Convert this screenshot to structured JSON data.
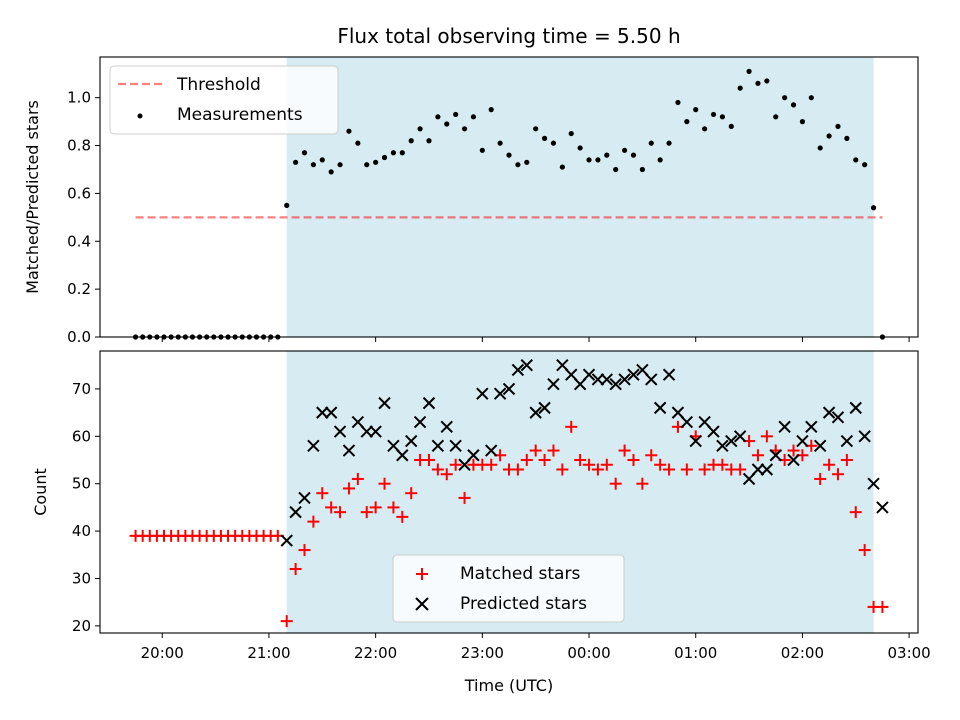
{
  "figure": {
    "title": "Flux total observing time = 5.50 h"
  },
  "colors": {
    "shade": "#add8e6",
    "threshold": "#ff0000",
    "matched": "#ff0000",
    "predicted": "#000000",
    "measurement": "#000000"
  },
  "chart_data": [
    {
      "type": "scatter",
      "panel": "top",
      "ylabel": "Matched/Predicted stars",
      "xlabel": "",
      "xlim": [
        "19:25",
        "03:05"
      ],
      "ylim": [
        0,
        1.17
      ],
      "x_axis": "time (UTC), hh:mm",
      "yticks": [
        "0.0",
        "0.2",
        "0.4",
        "0.6",
        "0.8",
        "1.0"
      ],
      "shaded_interval": [
        "21:10",
        "02:40"
      ],
      "legend": {
        "placement": "top-left",
        "entries": [
          "Threshold",
          "Measurements"
        ]
      },
      "threshold": {
        "name": "Threshold",
        "y": 0.5,
        "x_range": [
          "19:45",
          "02:45"
        ],
        "style": "dashed"
      },
      "series": [
        {
          "name": "Measurements",
          "points": [
            [
              "19:45",
              0
            ],
            [
              "19:49",
              0
            ],
            [
              "19:53",
              0
            ],
            [
              "19:57",
              0
            ],
            [
              "20:01",
              0
            ],
            [
              "20:05",
              0
            ],
            [
              "20:09",
              0
            ],
            [
              "20:13",
              0
            ],
            [
              "20:17",
              0
            ],
            [
              "20:21",
              0
            ],
            [
              "20:25",
              0
            ],
            [
              "20:29",
              0
            ],
            [
              "20:33",
              0
            ],
            [
              "20:37",
              0
            ],
            [
              "20:41",
              0
            ],
            [
              "20:45",
              0
            ],
            [
              "20:49",
              0
            ],
            [
              "20:53",
              0
            ],
            [
              "20:57",
              0
            ],
            [
              "21:01",
              0
            ],
            [
              "21:05",
              0
            ],
            [
              "21:10",
              0.55
            ],
            [
              "21:15",
              0.73
            ],
            [
              "21:20",
              0.77
            ],
            [
              "21:25",
              0.72
            ],
            [
              "21:30",
              0.74
            ],
            [
              "21:35",
              0.69
            ],
            [
              "21:40",
              0.72
            ],
            [
              "21:45",
              0.86
            ],
            [
              "21:50",
              0.81
            ],
            [
              "21:55",
              0.72
            ],
            [
              "22:00",
              0.73
            ],
            [
              "22:05",
              0.75
            ],
            [
              "22:10",
              0.77
            ],
            [
              "22:15",
              0.77
            ],
            [
              "22:20",
              0.82
            ],
            [
              "22:25",
              0.87
            ],
            [
              "22:30",
              0.82
            ],
            [
              "22:35",
              0.92
            ],
            [
              "22:40",
              0.89
            ],
            [
              "22:45",
              0.93
            ],
            [
              "22:50",
              0.87
            ],
            [
              "22:55",
              0.92
            ],
            [
              "23:00",
              0.78
            ],
            [
              "23:05",
              0.95
            ],
            [
              "23:10",
              0.81
            ],
            [
              "23:15",
              0.76
            ],
            [
              "23:20",
              0.72
            ],
            [
              "23:25",
              0.73
            ],
            [
              "23:30",
              0.87
            ],
            [
              "23:35",
              0.83
            ],
            [
              "23:40",
              0.81
            ],
            [
              "23:45",
              0.71
            ],
            [
              "23:50",
              0.85
            ],
            [
              "23:55",
              0.79
            ],
            [
              "00:00",
              0.74
            ],
            [
              "00:05",
              0.74
            ],
            [
              "00:10",
              0.76
            ],
            [
              "00:15",
              0.7
            ],
            [
              "00:20",
              0.78
            ],
            [
              "00:25",
              0.76
            ],
            [
              "00:30",
              0.7
            ],
            [
              "00:35",
              0.81
            ],
            [
              "00:40",
              0.74
            ],
            [
              "00:45",
              0.81
            ],
            [
              "00:50",
              0.98
            ],
            [
              "00:55",
              0.9
            ],
            [
              "01:00",
              0.95
            ],
            [
              "01:05",
              0.87
            ],
            [
              "01:10",
              0.93
            ],
            [
              "01:15",
              0.92
            ],
            [
              "01:20",
              0.88
            ],
            [
              "01:25",
              1.04
            ],
            [
              "01:30",
              1.11
            ],
            [
              "01:35",
              1.06
            ],
            [
              "01:40",
              1.07
            ],
            [
              "01:45",
              0.92
            ],
            [
              "01:50",
              1.0
            ],
            [
              "01:55",
              0.97
            ],
            [
              "02:00",
              0.9
            ],
            [
              "02:05",
              1.0
            ],
            [
              "02:10",
              0.79
            ],
            [
              "02:15",
              0.84
            ],
            [
              "02:20",
              0.88
            ],
            [
              "02:25",
              0.83
            ],
            [
              "02:30",
              0.74
            ],
            [
              "02:35",
              0.72
            ],
            [
              "02:40",
              0.54
            ],
            [
              "02:45",
              0
            ]
          ]
        }
      ]
    },
    {
      "type": "scatter",
      "panel": "bottom",
      "xlabel": "Time (UTC)",
      "ylabel": "Count",
      "xlim": [
        "19:25",
        "03:05"
      ],
      "ylim": [
        18.5,
        78
      ],
      "xticks": [
        "20:00",
        "21:00",
        "22:00",
        "23:00",
        "00:00",
        "01:00",
        "02:00",
        "03:00"
      ],
      "yticks": [
        "20",
        "30",
        "40",
        "50",
        "60",
        "70"
      ],
      "shaded_interval": [
        "21:10",
        "02:40"
      ],
      "legend": {
        "placement": "lower center",
        "entries": [
          "Matched stars",
          "Predicted stars"
        ]
      },
      "series": [
        {
          "name": "Matched stars",
          "marker": "plus",
          "points": [
            [
              "19:45",
              39
            ],
            [
              "19:49",
              39
            ],
            [
              "19:53",
              39
            ],
            [
              "19:57",
              39
            ],
            [
              "20:01",
              39
            ],
            [
              "20:05",
              39
            ],
            [
              "20:09",
              39
            ],
            [
              "20:13",
              39
            ],
            [
              "20:17",
              39
            ],
            [
              "20:21",
              39
            ],
            [
              "20:25",
              39
            ],
            [
              "20:29",
              39
            ],
            [
              "20:33",
              39
            ],
            [
              "20:37",
              39
            ],
            [
              "20:41",
              39
            ],
            [
              "20:45",
              39
            ],
            [
              "20:49",
              39
            ],
            [
              "20:53",
              39
            ],
            [
              "20:57",
              39
            ],
            [
              "21:01",
              39
            ],
            [
              "21:05",
              39
            ],
            [
              "21:10",
              21
            ],
            [
              "21:15",
              32
            ],
            [
              "21:20",
              36
            ],
            [
              "21:25",
              42
            ],
            [
              "21:30",
              48
            ],
            [
              "21:35",
              45
            ],
            [
              "21:40",
              44
            ],
            [
              "21:45",
              49
            ],
            [
              "21:50",
              51
            ],
            [
              "21:55",
              44
            ],
            [
              "22:00",
              45
            ],
            [
              "22:05",
              50
            ],
            [
              "22:10",
              45
            ],
            [
              "22:15",
              43
            ],
            [
              "22:20",
              48
            ],
            [
              "22:25",
              55
            ],
            [
              "22:30",
              55
            ],
            [
              "22:35",
              53
            ],
            [
              "22:40",
              52
            ],
            [
              "22:45",
              54
            ],
            [
              "22:50",
              47
            ],
            [
              "22:55",
              54
            ],
            [
              "23:00",
              54
            ],
            [
              "23:05",
              54
            ],
            [
              "23:10",
              56
            ],
            [
              "23:15",
              53
            ],
            [
              "23:20",
              53
            ],
            [
              "23:25",
              55
            ],
            [
              "23:30",
              57
            ],
            [
              "23:35",
              55
            ],
            [
              "23:40",
              57
            ],
            [
              "23:45",
              53
            ],
            [
              "23:50",
              62
            ],
            [
              "23:55",
              55
            ],
            [
              "00:00",
              54
            ],
            [
              "00:05",
              53
            ],
            [
              "00:10",
              54
            ],
            [
              "00:15",
              50
            ],
            [
              "00:20",
              57
            ],
            [
              "00:25",
              55
            ],
            [
              "00:30",
              50
            ],
            [
              "00:35",
              56
            ],
            [
              "00:40",
              54
            ],
            [
              "00:45",
              53
            ],
            [
              "00:50",
              62
            ],
            [
              "00:55",
              53
            ],
            [
              "01:00",
              60
            ],
            [
              "01:05",
              53
            ],
            [
              "01:10",
              54
            ],
            [
              "01:15",
              54
            ],
            [
              "01:20",
              53
            ],
            [
              "01:25",
              53
            ],
            [
              "01:30",
              59
            ],
            [
              "01:35",
              56
            ],
            [
              "01:40",
              60
            ],
            [
              "01:45",
              57
            ],
            [
              "01:50",
              55
            ],
            [
              "01:55",
              57
            ],
            [
              "02:00",
              56
            ],
            [
              "02:05",
              58
            ],
            [
              "02:10",
              51
            ],
            [
              "02:15",
              54
            ],
            [
              "02:20",
              52
            ],
            [
              "02:25",
              55
            ],
            [
              "02:30",
              44
            ],
            [
              "02:35",
              36
            ],
            [
              "02:40",
              24
            ],
            [
              "02:45",
              24
            ]
          ]
        },
        {
          "name": "Predicted stars",
          "marker": "x",
          "points": [
            [
              "21:10",
              38
            ],
            [
              "21:15",
              44
            ],
            [
              "21:20",
              47
            ],
            [
              "21:25",
              58
            ],
            [
              "21:30",
              65
            ],
            [
              "21:35",
              65
            ],
            [
              "21:40",
              61
            ],
            [
              "21:45",
              57
            ],
            [
              "21:50",
              63
            ],
            [
              "21:55",
              61
            ],
            [
              "22:00",
              61
            ],
            [
              "22:05",
              67
            ],
            [
              "22:10",
              58
            ],
            [
              "22:15",
              56
            ],
            [
              "22:20",
              59
            ],
            [
              "22:25",
              63
            ],
            [
              "22:30",
              67
            ],
            [
              "22:35",
              58
            ],
            [
              "22:40",
              62
            ],
            [
              "22:45",
              58
            ],
            [
              "22:50",
              54
            ],
            [
              "22:55",
              56
            ],
            [
              "23:00",
              69
            ],
            [
              "23:05",
              57
            ],
            [
              "23:10",
              69
            ],
            [
              "23:15",
              70
            ],
            [
              "23:20",
              74
            ],
            [
              "23:25",
              75
            ],
            [
              "23:30",
              65
            ],
            [
              "23:35",
              66
            ],
            [
              "23:40",
              71
            ],
            [
              "23:45",
              75
            ],
            [
              "23:50",
              73
            ],
            [
              "23:55",
              71
            ],
            [
              "00:00",
              73
            ],
            [
              "00:05",
              72
            ],
            [
              "00:10",
              72
            ],
            [
              "00:15",
              71
            ],
            [
              "00:20",
              72
            ],
            [
              "00:25",
              73
            ],
            [
              "00:30",
              74
            ],
            [
              "00:35",
              72
            ],
            [
              "00:40",
              66
            ],
            [
              "00:45",
              73
            ],
            [
              "00:50",
              65
            ],
            [
              "00:55",
              63
            ],
            [
              "01:00",
              59
            ],
            [
              "01:05",
              63
            ],
            [
              "01:10",
              61
            ],
            [
              "01:15",
              58
            ],
            [
              "01:20",
              59
            ],
            [
              "01:25",
              60
            ],
            [
              "01:30",
              51
            ],
            [
              "01:35",
              53
            ],
            [
              "01:40",
              53
            ],
            [
              "01:45",
              56
            ],
            [
              "01:50",
              62
            ],
            [
              "01:55",
              55
            ],
            [
              "02:00",
              59
            ],
            [
              "02:05",
              62
            ],
            [
              "02:10",
              58
            ],
            [
              "02:15",
              65
            ],
            [
              "02:20",
              64
            ],
            [
              "02:25",
              59
            ],
            [
              "02:30",
              66
            ],
            [
              "02:35",
              60
            ],
            [
              "02:40",
              50
            ],
            [
              "02:45",
              45
            ]
          ]
        }
      ]
    }
  ]
}
